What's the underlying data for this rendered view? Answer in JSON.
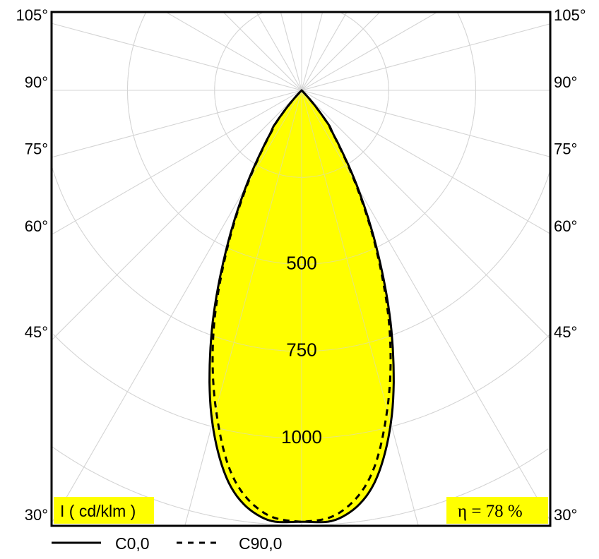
{
  "chart_data": {
    "type": "polar",
    "unit_label": "I ( cd/klm )",
    "efficiency_label": "η = 78 %",
    "radial_ticks": [
      500,
      750,
      1000
    ],
    "radial_grid": [
      250,
      500,
      750,
      1000,
      1250,
      1500
    ],
    "angle_grid_step": 15,
    "angle_labels": [
      "105°",
      "90°",
      "75°",
      "60°",
      "45°",
      "30°"
    ],
    "angle_label_values": [
      105,
      90,
      75,
      60,
      45,
      30
    ],
    "fill_color": "#ffff00",
    "grid": true,
    "legend_position": "bottom",
    "series": [
      {
        "name": "C0,0",
        "style": "solid",
        "angles": [
          0,
          5,
          10,
          15,
          20,
          25,
          30,
          35,
          38,
          40,
          42,
          45
        ],
        "values": [
          1240,
          1235,
          1160,
          990,
          760,
          520,
          320,
          175,
          130,
          80,
          40,
          0
        ]
      },
      {
        "name": "C90,0",
        "style": "dashed",
        "angles": [
          0,
          5,
          10,
          15,
          20,
          25,
          30,
          35,
          38,
          40,
          42,
          45
        ],
        "values": [
          1240,
          1220,
          1130,
          950,
          740,
          510,
          310,
          170,
          125,
          78,
          38,
          0
        ]
      }
    ]
  }
}
